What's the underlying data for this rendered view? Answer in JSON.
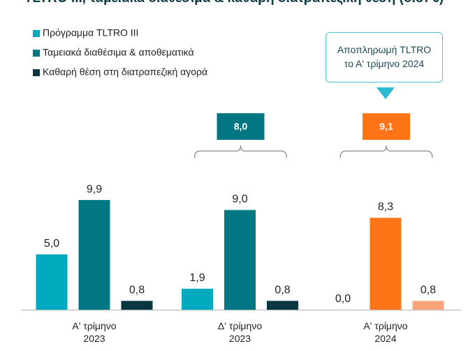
{
  "chart_data": {
    "type": "bar",
    "title": "TLTRO III, ταμειακά διαθέσιμα & καθαρή διατραπεζική θέση (δισ. €)",
    "categories": [
      "Α' τρίμηνο\n2023",
      "Δ' τρίμηνο\n2023",
      "Α' τρίμηνο\n2024"
    ],
    "series": [
      {
        "name": "Πρόγραμμα TLTRO III",
        "color": "#00aabf",
        "colors": [
          "#00aabf",
          "#00aabf",
          "#00aabf"
        ],
        "values": [
          5.0,
          1.9,
          0.0
        ],
        "value_labels": [
          "5,0",
          "1,9",
          "0,0"
        ]
      },
      {
        "name": "Ταμειακά διαθέσιμα & αποθεματικά",
        "color": "#007782",
        "colors": [
          "#007782",
          "#007782",
          "#ff7417"
        ],
        "values": [
          9.9,
          9.0,
          8.3
        ],
        "value_labels": [
          "9,9",
          "9,0",
          "8,3"
        ]
      },
      {
        "name": "Καθαρή θέση στη διατραπεζική αγορά",
        "color": "#083740",
        "colors": [
          "#083740",
          "#083740",
          "#f8a57c"
        ],
        "values": [
          0.8,
          0.8,
          0.8
        ],
        "value_labels": [
          "0,8",
          "0,8",
          "0,8"
        ]
      }
    ],
    "totals": [
      {
        "category": "Δ' τρίμηνο\n2023",
        "value": 8.0,
        "label": "8,0",
        "color": "#007782"
      },
      {
        "category": "Α' τρίμηνο\n2024",
        "value": 9.1,
        "label": "9,1",
        "color": "#ff7417"
      }
    ],
    "annotation": {
      "category": "Α' τρίμηνο\n2024",
      "text": "Αποπληρωμή TLTRO\nτο Α' τρίμηνο 2024"
    },
    "ylim": [
      0,
      10
    ]
  }
}
